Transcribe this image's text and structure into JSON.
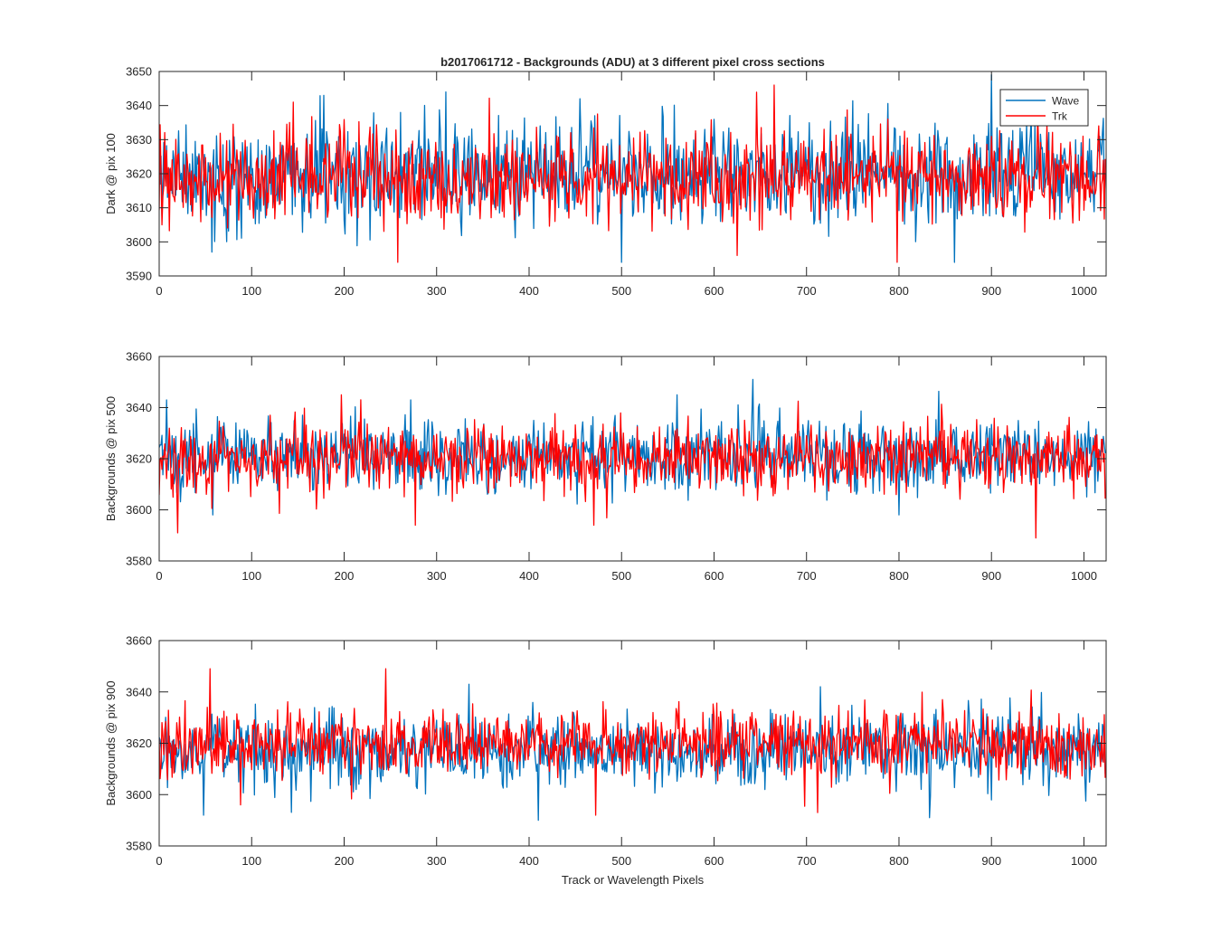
{
  "chart_data": [
    {
      "type": "line",
      "title": "b2017061712 - Backgrounds (ADU) at 3 different pixel cross sections",
      "xlabel": "",
      "ylabel": "Dark @ pix 100",
      "xlim": [
        0,
        1024
      ],
      "ylim": [
        3590,
        3650
      ],
      "xticks": [
        0,
        100,
        200,
        300,
        400,
        500,
        600,
        700,
        800,
        900,
        1000
      ],
      "yticks": [
        3590,
        3600,
        3610,
        3620,
        3630,
        3640,
        3650
      ],
      "legend": {
        "placement": "top-right",
        "entries": [
          "Wave",
          "Trk"
        ]
      },
      "series": [
        {
          "name": "Wave",
          "color": "#0072BD",
          "n": 1024,
          "mean": 3620,
          "std": 7.2,
          "min": 3594,
          "max": 3649,
          "seed": 11,
          "peaks": [
            [
              178,
              3643
            ],
            [
              310,
              3644
            ],
            [
              455,
              3642
            ],
            [
              500,
              3594
            ],
            [
              860,
              3594
            ],
            [
              900,
              3649
            ],
            [
              57,
              3597
            ],
            [
              1020,
              3632
            ]
          ]
        },
        {
          "name": "Trk",
          "color": "#FF0000",
          "n": 1024,
          "mean": 3619,
          "std": 6.2,
          "min": 3594,
          "max": 3646,
          "seed": 23,
          "peaks": [
            [
              665,
              3646
            ],
            [
              258,
              3594
            ],
            [
              798,
              3594
            ],
            [
              145,
              3641
            ],
            [
              625,
              3596
            ],
            [
              3,
              3605
            ]
          ]
        }
      ]
    },
    {
      "type": "line",
      "title": "",
      "xlabel": "",
      "ylabel": "Backgrounds @ pix 500",
      "xlim": [
        0,
        1024
      ],
      "ylim": [
        3580,
        3660
      ],
      "xticks": [
        0,
        100,
        200,
        300,
        400,
        500,
        600,
        700,
        800,
        900,
        1000
      ],
      "yticks": [
        3580,
        3600,
        3620,
        3640,
        3660
      ],
      "series": [
        {
          "name": "Wave",
          "color": "#0072BD",
          "n": 1024,
          "mean": 3621,
          "std": 7.0,
          "min": 3597,
          "max": 3651,
          "seed": 37,
          "peaks": [
            [
              642,
              3651
            ],
            [
              8,
              3643
            ],
            [
              272,
              3643
            ],
            [
              560,
              3645
            ],
            [
              58,
              3598
            ]
          ]
        },
        {
          "name": "Trk",
          "color": "#FF0000",
          "n": 1024,
          "mean": 3620,
          "std": 6.4,
          "min": 3589,
          "max": 3645,
          "seed": 51,
          "peaks": [
            [
              197,
              3645
            ],
            [
              20,
              3591
            ],
            [
              948,
              3589
            ],
            [
              277,
              3594
            ],
            [
              470,
              3594
            ]
          ]
        }
      ]
    },
    {
      "type": "line",
      "title": "",
      "xlabel": "Track or Wavelength Pixels",
      "ylabel": "Backgrounds @ pix 900",
      "xlim": [
        0,
        1024
      ],
      "ylim": [
        3580,
        3660
      ],
      "xticks": [
        0,
        100,
        200,
        300,
        400,
        500,
        600,
        700,
        800,
        900,
        1000
      ],
      "yticks": [
        3580,
        3600,
        3620,
        3640,
        3660
      ],
      "series": [
        {
          "name": "Wave",
          "color": "#0072BD",
          "n": 1024,
          "mean": 3617,
          "std": 7.0,
          "min": 3590,
          "max": 3643,
          "seed": 67,
          "peaks": [
            [
              410,
              3590
            ],
            [
              48,
              3592
            ],
            [
              335,
              3643
            ],
            [
              715,
              3642
            ]
          ]
        },
        {
          "name": "Trk",
          "color": "#FF0000",
          "n": 1024,
          "mean": 3620,
          "std": 6.3,
          "min": 3592,
          "max": 3649,
          "seed": 79,
          "peaks": [
            [
              55,
              3649
            ],
            [
              245,
              3649
            ],
            [
              472,
              3592
            ],
            [
              712,
              3593
            ],
            [
              88,
              3596
            ]
          ]
        }
      ]
    }
  ]
}
